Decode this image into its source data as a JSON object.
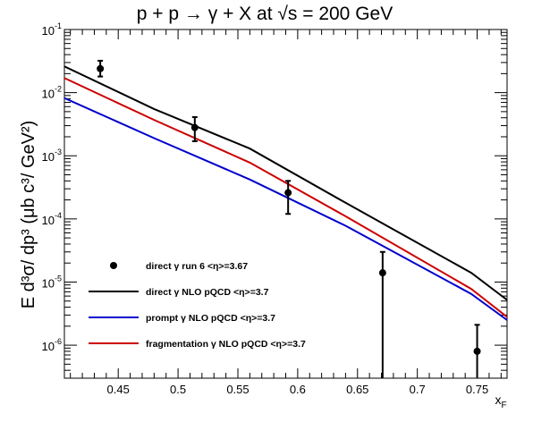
{
  "chart_data": {
    "type": "line",
    "title": "p + p → γ + X at  √s = 200 GeV",
    "xlabel": "x_F",
    "ylabel": "E d³σ/ dp³ (μb c³/ GeV²)",
    "xlim": [
      0.405,
      0.775
    ],
    "ylim": [
      3e-07,
      0.1
    ],
    "yscale": "log",
    "x_ticks": [
      0.45,
      0.5,
      0.55,
      0.6,
      0.65,
      0.7,
      0.75
    ],
    "x_tick_labels": [
      "0.45",
      "0.5",
      "0.55",
      "0.6",
      "0.65",
      "0.7",
      "0.75"
    ],
    "y_ticks": [
      {
        "value": 0.1,
        "base": "10",
        "exp": "-1"
      },
      {
        "value": 0.01,
        "base": "10",
        "exp": "-2"
      },
      {
        "value": 0.001,
        "base": "10",
        "exp": "-3"
      },
      {
        "value": 0.0001,
        "base": "10",
        "exp": "-4"
      },
      {
        "value": 1e-05,
        "base": "10",
        "exp": "-5"
      },
      {
        "value": 1e-06,
        "base": "10",
        "exp": "-6"
      }
    ],
    "grid": false,
    "legend_position": "bottom-left",
    "points": {
      "name": "direct γ   run 6 <η>=3.67",
      "color": "#000000",
      "data": [
        {
          "x": 0.435,
          "y": 0.024,
          "ylo": 0.018,
          "yhi": 0.032
        },
        {
          "x": 0.514,
          "y": 0.0028,
          "ylo": 0.0017,
          "yhi": 0.0041
        },
        {
          "x": 0.592,
          "y": 0.00026,
          "ylo": 0.00012,
          "yhi": 0.0004
        },
        {
          "x": 0.671,
          "y": 1.4e-05,
          "ylo": 3e-07,
          "yhi": 3e-05
        },
        {
          "x": 0.75,
          "y": 8e-07,
          "ylo": 3e-07,
          "yhi": 2.1e-06
        }
      ]
    },
    "series": [
      {
        "name": "direct γ   NLO pQCD  <η>=3.7",
        "color": "#000000",
        "x": [
          0.405,
          0.48,
          0.56,
          0.64,
          0.745,
          0.775
        ],
        "values": [
          0.026,
          0.0055,
          0.0013,
          0.00018,
          1.4e-05,
          5.2e-06
        ]
      },
      {
        "name": "prompt γ   NLO pQCD  <η>=3.7",
        "color": "#0000cc",
        "x": [
          0.405,
          0.48,
          0.56,
          0.64,
          0.745,
          0.775
        ],
        "values": [
          0.0082,
          0.0019,
          0.00042,
          7.8e-05,
          6.5e-06,
          2.5e-06
        ]
      },
      {
        "name": "fragmentation γ   NLO pQCD  <η>=3.7",
        "color": "#cc0000",
        "x": [
          0.405,
          0.48,
          0.56,
          0.64,
          0.745,
          0.775
        ],
        "values": [
          0.017,
          0.0037,
          0.00078,
          0.00011,
          7.8e-06,
          2.8e-06
        ]
      }
    ]
  }
}
